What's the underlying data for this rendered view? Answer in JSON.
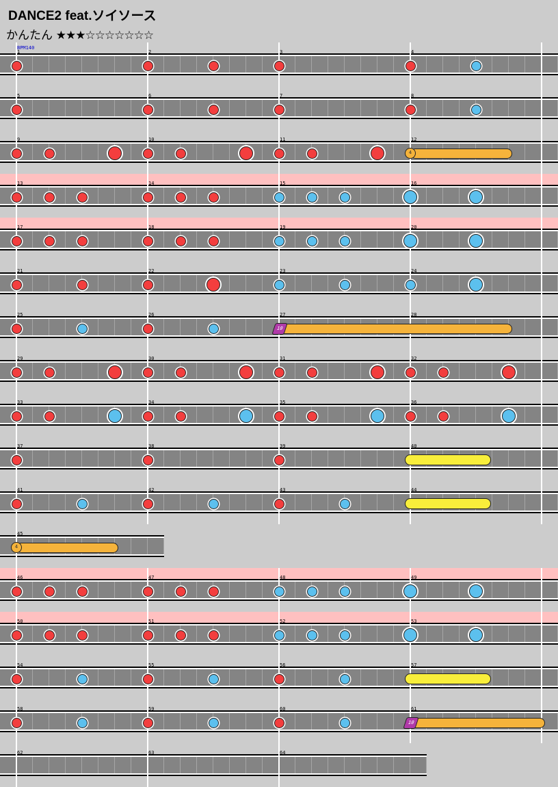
{
  "song": {
    "title": "DANCE2  feat.ソイソース",
    "difficulty_label": "かんたん",
    "level_stars": "★★★☆☆☆☆☆☆☆",
    "bpm_label": "BPM140"
  },
  "colors": {
    "background": "#cccccc",
    "don": "#f33e3e",
    "ka": "#5cc0ee",
    "roll": "#f5b33b",
    "big_roll": "#f8ee3b",
    "balloon": "#b03aa8",
    "gogo_band": "#ffc0c0"
  },
  "chart_data": {
    "type": "rhythm-game-chart",
    "measure_beats": 4,
    "subdivisions_per_measure": 8,
    "measures_per_row": 4,
    "rows": [
      {
        "first_measure": 1,
        "measures": 4,
        "gogo": false,
        "labels": [
          "1",
          "2",
          "3",
          "4"
        ],
        "notes": [
          [
            "don",
            0
          ],
          [
            "don",
            8
          ],
          [
            "don",
            12
          ],
          [
            "don",
            16
          ],
          [
            "don",
            24
          ],
          [
            "ka",
            28
          ]
        ]
      },
      {
        "first_measure": 5,
        "measures": 4,
        "gogo": false,
        "labels": [
          "5",
          "6",
          "7",
          "8"
        ],
        "notes": [
          [
            "don",
            0
          ],
          [
            "don",
            8
          ],
          [
            "don",
            12
          ],
          [
            "don",
            16
          ],
          [
            "don",
            24
          ],
          [
            "ka",
            28
          ]
        ]
      },
      {
        "first_measure": 9,
        "measures": 4,
        "gogo": false,
        "labels": [
          "9",
          "10",
          "11",
          "12"
        ],
        "notes": [
          [
            "don",
            0
          ],
          [
            "don",
            2
          ],
          [
            "DON",
            6
          ],
          [
            "don",
            8
          ],
          [
            "don",
            10
          ],
          [
            "DON",
            14
          ],
          [
            "don",
            16
          ],
          [
            "don",
            18
          ],
          [
            "DON",
            22
          ]
        ],
        "rolls": [
          [
            "balloon-orange",
            24,
            30.2,
            "4"
          ]
        ]
      },
      {
        "first_measure": 13,
        "measures": 4,
        "gogo": true,
        "labels": [
          "13",
          "14",
          "15",
          "16"
        ],
        "notes": [
          [
            "don",
            0
          ],
          [
            "don",
            2
          ],
          [
            "don",
            4
          ],
          [
            "don",
            8
          ],
          [
            "don",
            10
          ],
          [
            "don",
            12
          ],
          [
            "ka",
            16
          ],
          [
            "ka",
            18
          ],
          [
            "ka",
            20
          ],
          [
            "KA",
            24
          ],
          [
            "KA",
            28
          ]
        ]
      },
      {
        "first_measure": 17,
        "measures": 4,
        "gogo": true,
        "labels": [
          "17",
          "18",
          "19",
          "20"
        ],
        "notes": [
          [
            "don",
            0
          ],
          [
            "don",
            2
          ],
          [
            "don",
            4
          ],
          [
            "don",
            8
          ],
          [
            "don",
            10
          ],
          [
            "don",
            12
          ],
          [
            "ka",
            16
          ],
          [
            "ka",
            18
          ],
          [
            "ka",
            20
          ],
          [
            "KA",
            24
          ],
          [
            "KA",
            28
          ]
        ]
      },
      {
        "first_measure": 21,
        "measures": 4,
        "gogo": false,
        "labels": [
          "21",
          "22",
          "23",
          "24"
        ],
        "notes": [
          [
            "don",
            0
          ],
          [
            "don",
            4
          ],
          [
            "don",
            8
          ],
          [
            "DON",
            12
          ],
          [
            "ka",
            16
          ],
          [
            "ka",
            20
          ],
          [
            "ka",
            24
          ],
          [
            "KA",
            28
          ]
        ]
      },
      {
        "first_measure": 25,
        "measures": 4,
        "gogo": false,
        "labels": [
          "25",
          "26",
          "27",
          "28"
        ],
        "notes": [
          [
            "don",
            0
          ],
          [
            "ka",
            4
          ],
          [
            "don",
            8
          ],
          [
            "ka",
            12
          ]
        ],
        "rolls": [
          [
            "balloon-purple",
            16,
            30.2,
            "10"
          ]
        ]
      },
      {
        "first_measure": 29,
        "measures": 4,
        "gogo": false,
        "labels": [
          "29",
          "30",
          "31",
          "32"
        ],
        "notes": [
          [
            "don",
            0
          ],
          [
            "don",
            2
          ],
          [
            "DON",
            6
          ],
          [
            "don",
            8
          ],
          [
            "don",
            10
          ],
          [
            "DON",
            14
          ],
          [
            "don",
            16
          ],
          [
            "don",
            18
          ],
          [
            "DON",
            22
          ],
          [
            "don",
            24
          ],
          [
            "don",
            26
          ],
          [
            "DON",
            30
          ]
        ]
      },
      {
        "first_measure": 33,
        "measures": 4,
        "gogo": false,
        "labels": [
          "33",
          "34",
          "35",
          "36"
        ],
        "notes": [
          [
            "don",
            0
          ],
          [
            "don",
            2
          ],
          [
            "KA",
            6
          ],
          [
            "don",
            8
          ],
          [
            "don",
            10
          ],
          [
            "KA",
            14
          ],
          [
            "don",
            16
          ],
          [
            "don",
            18
          ],
          [
            "KA",
            22
          ],
          [
            "don",
            24
          ],
          [
            "don",
            26
          ],
          [
            "KA",
            30
          ]
        ]
      },
      {
        "first_measure": 37,
        "measures": 4,
        "gogo": false,
        "labels": [
          "37",
          "38",
          "39",
          "40"
        ],
        "notes": [
          [
            "don",
            0
          ],
          [
            "don",
            8
          ],
          [
            "don",
            16
          ]
        ],
        "rolls": [
          [
            "big-roll",
            24,
            28.6,
            ""
          ]
        ]
      },
      {
        "first_measure": 41,
        "measures": 4,
        "gogo": false,
        "labels": [
          "41",
          "42",
          "43",
          "44"
        ],
        "notes": [
          [
            "don",
            0
          ],
          [
            "ka",
            4
          ],
          [
            "don",
            8
          ],
          [
            "ka",
            12
          ],
          [
            "don",
            16
          ],
          [
            "ka",
            20
          ]
        ],
        "rolls": [
          [
            "big-roll",
            24,
            28.6,
            ""
          ]
        ]
      },
      {
        "first_measure": 45,
        "measures": 1,
        "gogo": false,
        "labels": [
          "45"
        ],
        "notes": [],
        "rolls": [
          [
            "balloon-orange",
            0,
            6.2,
            "4"
          ]
        ]
      },
      {
        "first_measure": 46,
        "measures": 4,
        "gogo": true,
        "labels": [
          "46",
          "47",
          "48",
          "49"
        ],
        "notes": [
          [
            "don",
            0
          ],
          [
            "don",
            2
          ],
          [
            "don",
            4
          ],
          [
            "don",
            8
          ],
          [
            "don",
            10
          ],
          [
            "don",
            12
          ],
          [
            "ka",
            16
          ],
          [
            "ka",
            18
          ],
          [
            "ka",
            20
          ],
          [
            "KA",
            24
          ],
          [
            "KA",
            28
          ]
        ]
      },
      {
        "first_measure": 50,
        "measures": 4,
        "gogo": true,
        "labels": [
          "50",
          "51",
          "52",
          "53"
        ],
        "notes": [
          [
            "don",
            0
          ],
          [
            "don",
            2
          ],
          [
            "don",
            4
          ],
          [
            "don",
            8
          ],
          [
            "don",
            10
          ],
          [
            "don",
            12
          ],
          [
            "ka",
            16
          ],
          [
            "ka",
            18
          ],
          [
            "ka",
            20
          ],
          [
            "KA",
            24
          ],
          [
            "KA",
            28
          ]
        ]
      },
      {
        "first_measure": 54,
        "measures": 4,
        "gogo": false,
        "labels": [
          "54",
          "55",
          "56",
          "57"
        ],
        "notes": [
          [
            "don",
            0
          ],
          [
            "ka",
            4
          ],
          [
            "don",
            8
          ],
          [
            "ka",
            12
          ],
          [
            "don",
            16
          ],
          [
            "ka",
            20
          ]
        ],
        "rolls": [
          [
            "big-roll",
            24,
            28.6,
            ""
          ]
        ]
      },
      {
        "first_measure": 58,
        "measures": 4,
        "gogo": false,
        "labels": [
          "58",
          "59",
          "60",
          "61"
        ],
        "notes": [
          [
            "don",
            0
          ],
          [
            "ka",
            4
          ],
          [
            "don",
            8
          ],
          [
            "ka",
            12
          ],
          [
            "don",
            16
          ],
          [
            "ka",
            20
          ]
        ],
        "rolls": [
          [
            "balloon-purple",
            24,
            32.2,
            "10"
          ]
        ]
      },
      {
        "first_measure": 62,
        "measures": 3,
        "gogo": false,
        "labels": [
          "62",
          "63",
          "64"
        ],
        "notes": []
      }
    ]
  }
}
